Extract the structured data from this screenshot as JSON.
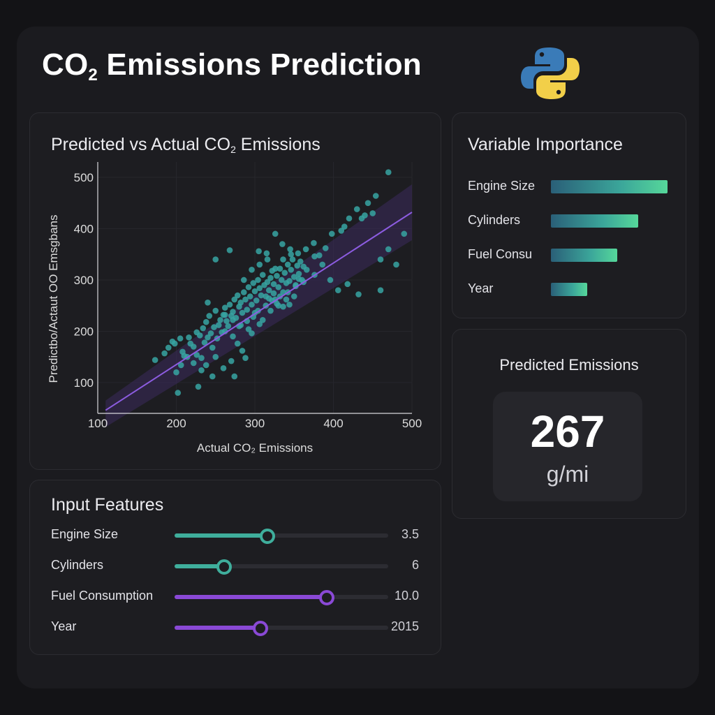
{
  "header": {
    "title_prefix": "CO",
    "title_sub": "2",
    "title_suffix": " Emissions Prediction",
    "logo": "python-logo"
  },
  "scatter": {
    "title_prefix": "Predicted vs Actual CO",
    "title_sub": "2",
    "title_suffix": " Emissions",
    "chart_data": {
      "type": "scatter",
      "xlabel": "Actual CO₂ Emissions",
      "ylabel": "Predictbo/Actaut OO Emsgbans",
      "xlim": [
        100,
        500
      ],
      "ylim": [
        40,
        530
      ],
      "x_ticks": [
        100,
        200,
        300,
        400,
        500
      ],
      "y_ticks": [
        100,
        200,
        300,
        400,
        500
      ],
      "grid": true,
      "points": [
        [
          173,
          144
        ],
        [
          185,
          157
        ],
        [
          190,
          168
        ],
        [
          195,
          180
        ],
        [
          198,
          176
        ],
        [
          205,
          186
        ],
        [
          200,
          120
        ],
        [
          202,
          80
        ],
        [
          208,
          160
        ],
        [
          214,
          150
        ],
        [
          218,
          176
        ],
        [
          222,
          170
        ],
        [
          226,
          154
        ],
        [
          230,
          192
        ],
        [
          232,
          148
        ],
        [
          234,
          206
        ],
        [
          236,
          178
        ],
        [
          238,
          218
        ],
        [
          240,
          188
        ],
        [
          242,
          230
        ],
        [
          244,
          196
        ],
        [
          246,
          168
        ],
        [
          248,
          208
        ],
        [
          250,
          240
        ],
        [
          252,
          186
        ],
        [
          254,
          212
        ],
        [
          256,
          222
        ],
        [
          258,
          198
        ],
        [
          260,
          232
        ],
        [
          262,
          246
        ],
        [
          264,
          220
        ],
        [
          266,
          210
        ],
        [
          268,
          252
        ],
        [
          270,
          230
        ],
        [
          272,
          238
        ],
        [
          274,
          262
        ],
        [
          276,
          226
        ],
        [
          278,
          270
        ],
        [
          280,
          248
        ],
        [
          282,
          256
        ],
        [
          284,
          236
        ],
        [
          286,
          276
        ],
        [
          288,
          262
        ],
        [
          290,
          242
        ],
        [
          292,
          286
        ],
        [
          294,
          268
        ],
        [
          296,
          252
        ],
        [
          298,
          294
        ],
        [
          300,
          278
        ],
        [
          302,
          260
        ],
        [
          304,
          300
        ],
        [
          306,
          284
        ],
        [
          308,
          270
        ],
        [
          310,
          310
        ],
        [
          312,
          290
        ],
        [
          314,
          268
        ],
        [
          316,
          296
        ],
        [
          318,
          280
        ],
        [
          320,
          304
        ],
        [
          322,
          318
        ],
        [
          324,
          292
        ],
        [
          326,
          262
        ],
        [
          328,
          308
        ],
        [
          330,
          286
        ],
        [
          332,
          322
        ],
        [
          334,
          300
        ],
        [
          336,
          276
        ],
        [
          338,
          314
        ],
        [
          340,
          294
        ],
        [
          342,
          330
        ],
        [
          344,
          298
        ],
        [
          346,
          320
        ],
        [
          348,
          340
        ],
        [
          350,
          306
        ],
        [
          352,
          290
        ],
        [
          354,
          328
        ],
        [
          356,
          312
        ],
        [
          358,
          336
        ],
        [
          360,
          300
        ],
        [
          362,
          326
        ],
        [
          250,
          340
        ],
        [
          268,
          358
        ],
        [
          240,
          256
        ],
        [
          262,
          200
        ],
        [
          272,
          190
        ],
        [
          278,
          176
        ],
        [
          284,
          162
        ],
        [
          250,
          150
        ],
        [
          238,
          134
        ],
        [
          270,
          142
        ],
        [
          288,
          148
        ],
        [
          292,
          204
        ],
        [
          300,
          236
        ],
        [
          310,
          222
        ],
        [
          320,
          240
        ],
        [
          330,
          250
        ],
        [
          340,
          262
        ],
        [
          350,
          268
        ],
        [
          305,
          356
        ],
        [
          315,
          352
        ],
        [
          326,
          390
        ],
        [
          335,
          370
        ],
        [
          345,
          360
        ],
        [
          355,
          352
        ],
        [
          365,
          360
        ],
        [
          375,
          372
        ],
        [
          382,
          348
        ],
        [
          390,
          362
        ],
        [
          398,
          390
        ],
        [
          410,
          396
        ],
        [
          420,
          420
        ],
        [
          430,
          438
        ],
        [
          440,
          426
        ],
        [
          444,
          450
        ],
        [
          454,
          464
        ],
        [
          470,
          510
        ],
        [
          414,
          404
        ],
        [
          436,
          420
        ],
        [
          450,
          430
        ],
        [
          460,
          340
        ],
        [
          376,
          310
        ],
        [
          386,
          330
        ],
        [
          396,
          300
        ],
        [
          406,
          280
        ],
        [
          418,
          292
        ],
        [
          432,
          272
        ],
        [
          460,
          280
        ],
        [
          480,
          330
        ],
        [
          470,
          360
        ],
        [
          490,
          390
        ],
        [
          280,
          210
        ],
        [
          290,
          220
        ],
        [
          298,
          228
        ],
        [
          304,
          240
        ],
        [
          314,
          250
        ],
        [
          322,
          260
        ],
        [
          332,
          268
        ],
        [
          342,
          276
        ],
        [
          352,
          288
        ],
        [
          362,
          296
        ],
        [
          318,
          264
        ],
        [
          324,
          274
        ],
        [
          328,
          254
        ],
        [
          336,
          248
        ],
        [
          344,
          252
        ],
        [
          262,
          232
        ],
        [
          272,
          222
        ],
        [
          282,
          212
        ],
        [
          296,
          196
        ],
        [
          306,
          214
        ],
        [
          286,
          300
        ],
        [
          296,
          320
        ],
        [
          306,
          330
        ],
        [
          316,
          340
        ],
        [
          326,
          322
        ],
        [
          336,
          340
        ],
        [
          346,
          350
        ],
        [
          356,
          302
        ],
        [
          366,
          320
        ],
        [
          376,
          346
        ],
        [
          210,
          152
        ],
        [
          222,
          138
        ],
        [
          232,
          124
        ],
        [
          246,
          112
        ],
        [
          260,
          128
        ],
        [
          274,
          112
        ],
        [
          228,
          92
        ],
        [
          206,
          134
        ],
        [
          216,
          188
        ],
        [
          226,
          198
        ]
      ],
      "fit_line": [
        [
          110,
          46
        ],
        [
          500,
          432
        ]
      ]
    }
  },
  "importance": {
    "title": "Variable Importance",
    "items": [
      {
        "label": "Engine Size",
        "value": 1.0
      },
      {
        "label": "Cylinders",
        "value": 0.75
      },
      {
        "label": "Fuel Consu",
        "value": 0.57
      },
      {
        "label": "Year",
        "value": 0.31
      }
    ]
  },
  "prediction": {
    "title": "Predicted Emissions",
    "value": "267",
    "unit": "g/mi"
  },
  "features": {
    "title": "Input Features",
    "items": [
      {
        "label": "Engine Size",
        "value": "3.5",
        "fill": 0.43,
        "color": "#3fae9c"
      },
      {
        "label": "Cylinders",
        "value": "6",
        "fill": 0.23,
        "color": "#3fae9c"
      },
      {
        "label": "Fuel Consumption",
        "value": "10.0",
        "fill": 0.71,
        "color": "#8a49d6"
      },
      {
        "label": "Year",
        "value": "2015",
        "fill": 0.4,
        "color": "#8a49d6"
      }
    ]
  },
  "colors": {
    "accent_teal": "#3fae9c",
    "accent_purple": "#8a49d6",
    "point": "#37a5a2",
    "fit_line": "#8c5ce0"
  }
}
